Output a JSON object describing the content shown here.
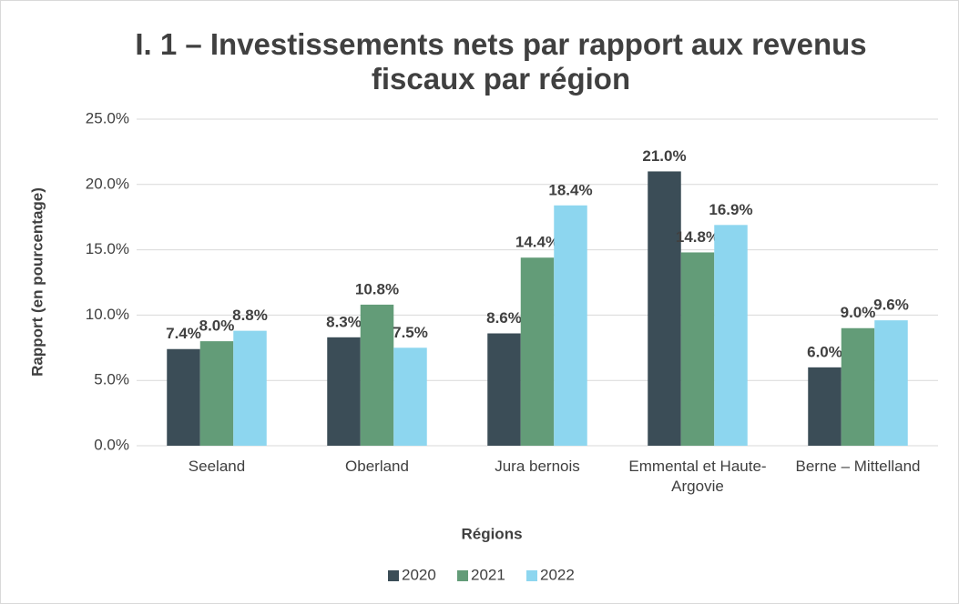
{
  "chart_data": {
    "type": "bar",
    "title": "I. 1 – Investissements nets par rapport aux revenus fiscaux par région",
    "x_label": "Régions",
    "y_label": "Rapport (en pourcentage)",
    "categories": [
      "Seeland",
      "Oberland",
      "Jura bernois",
      "Emmental et Haute-Argovie",
      "Berne – Mittelland"
    ],
    "series": [
      {
        "name": "2020",
        "color": "#3b4d57",
        "values": [
          7.4,
          8.3,
          8.6,
          21.0,
          6.0
        ],
        "value_labels": [
          "7.4%",
          "8.3%",
          "8.6%",
          "21.0%",
          "6.0%"
        ]
      },
      {
        "name": "2021",
        "color": "#639c78",
        "values": [
          8.0,
          10.8,
          14.4,
          14.8,
          9.0
        ],
        "value_labels": [
          "8.0%",
          "10.8%",
          "14.4%",
          "14.8%",
          "9.0%"
        ]
      },
      {
        "name": "2022",
        "color": "#8dd6ef",
        "values": [
          8.8,
          7.5,
          18.4,
          16.9,
          9.6
        ],
        "value_labels": [
          "8.8%",
          "7.5%",
          "18.4%",
          "16.9%",
          "9.6%"
        ]
      }
    ],
    "ylim": [
      0,
      25
    ],
    "yticks": [
      {
        "value": 0,
        "label": "0.0%"
      },
      {
        "value": 5,
        "label": "5.0%"
      },
      {
        "value": 10,
        "label": "10.0%"
      },
      {
        "value": 15,
        "label": "15.0%"
      },
      {
        "value": 20,
        "label": "20.0%"
      },
      {
        "value": 25,
        "label": "25.0%"
      }
    ],
    "grid": true,
    "legend": "bottom"
  }
}
